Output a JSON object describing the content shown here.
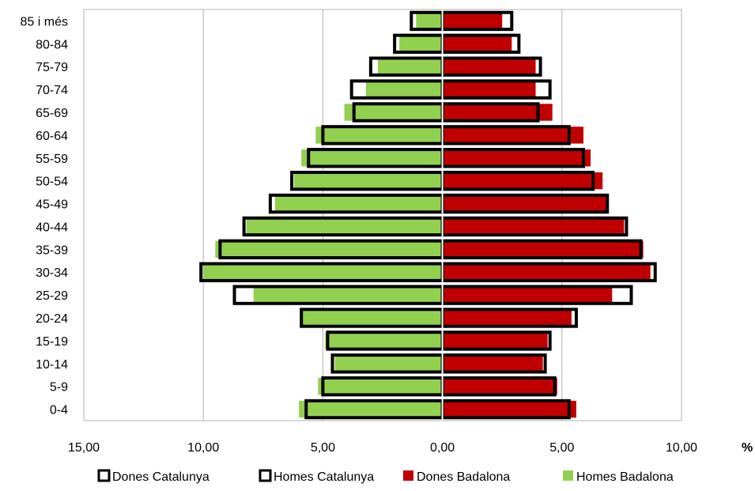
{
  "chart_data": {
    "type": "bar",
    "orientation": "horizontal",
    "subtype": "population-pyramid",
    "title": "",
    "xlabel": "",
    "ylabel": "",
    "unit_label": "%",
    "xlim": [
      -15,
      10
    ],
    "x_ticks": [
      -15,
      -10,
      -5,
      0,
      5,
      10
    ],
    "x_tick_labels": [
      "15,00",
      "10,00",
      "5,00",
      "0,00",
      "5,00",
      "10,00"
    ],
    "grid": "vertical",
    "legend_position": "bottom",
    "categories": [
      "0-4",
      "5-9",
      "10-14",
      "15-19",
      "20-24",
      "25-29",
      "30-34",
      "35-39",
      "40-44",
      "45-49",
      "50-54",
      "55-59",
      "60-64",
      "65-69",
      "70-74",
      "75-79",
      "80-84",
      "85 i més"
    ],
    "series": [
      {
        "name": "Dones Catalunya",
        "side": "right",
        "style": "outline",
        "color": "#000000",
        "values": [
          5.3,
          4.7,
          4.3,
          4.5,
          5.6,
          7.9,
          8.9,
          8.3,
          7.7,
          6.9,
          6.3,
          5.9,
          5.3,
          4.0,
          4.5,
          4.1,
          3.2,
          2.9
        ]
      },
      {
        "name": "Homes Catalunya",
        "side": "left",
        "style": "outline",
        "color": "#000000",
        "values": [
          5.7,
          5.0,
          4.6,
          4.8,
          5.9,
          8.7,
          10.1,
          9.3,
          8.3,
          7.2,
          6.3,
          5.6,
          5.0,
          3.7,
          3.8,
          3.0,
          2.0,
          1.3
        ]
      },
      {
        "name": "Dones Badalona",
        "side": "right",
        "style": "fill",
        "color": "#C00000",
        "values": [
          5.6,
          4.8,
          4.2,
          4.4,
          5.4,
          7.1,
          8.7,
          8.4,
          7.6,
          6.9,
          6.7,
          6.2,
          5.9,
          4.6,
          3.9,
          3.9,
          2.9,
          2.5
        ]
      },
      {
        "name": "Homes Badalona",
        "side": "left",
        "style": "fill",
        "color": "#92D050",
        "values": [
          6.0,
          5.2,
          4.5,
          4.9,
          5.9,
          7.9,
          10.0,
          9.5,
          8.2,
          7.0,
          6.2,
          5.9,
          5.3,
          4.1,
          3.2,
          2.7,
          1.8,
          1.1
        ]
      }
    ]
  }
}
